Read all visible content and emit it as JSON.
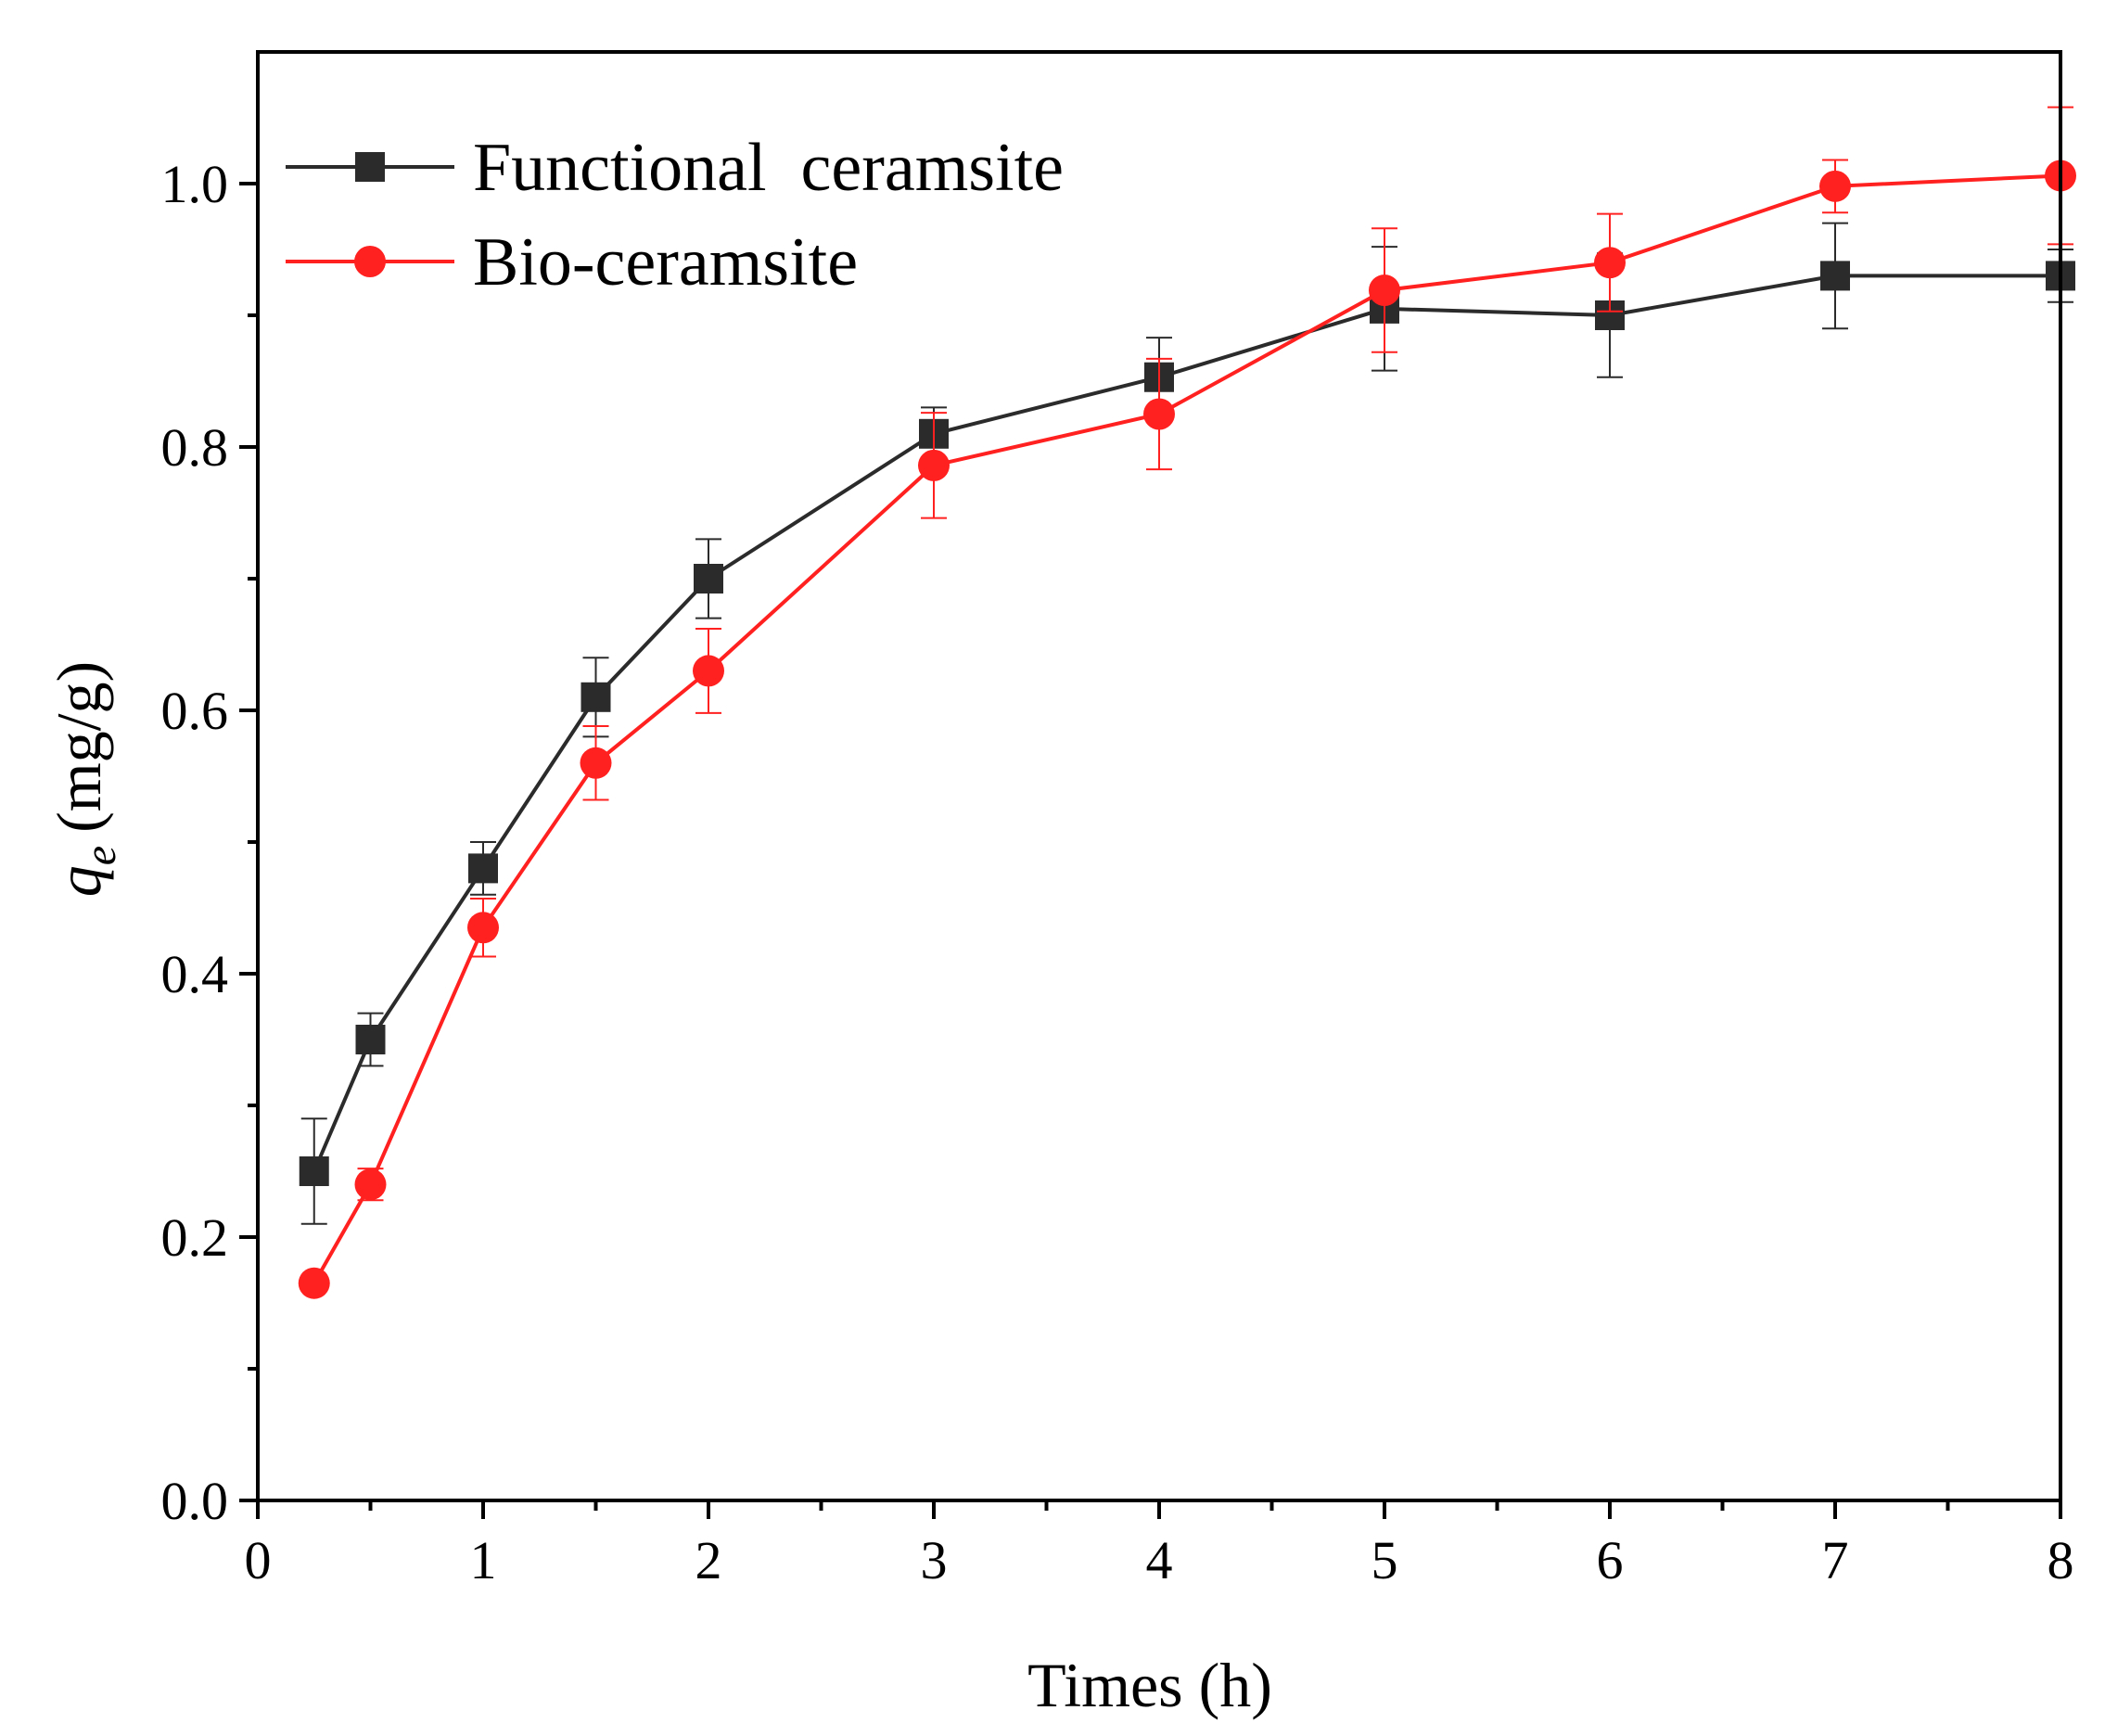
{
  "chart_data": {
    "type": "line",
    "title": "",
    "xlabel": "Times (h)",
    "ylabel": "(mg/g)",
    "ylabel_symbol": "q",
    "ylabel_subscript": "e",
    "xlim": [
      0,
      8
    ],
    "ylim": [
      0,
      1.1
    ],
    "xticks": [
      0,
      1,
      2,
      3,
      4,
      5,
      6,
      7,
      8
    ],
    "yticks": [
      0.0,
      0.2,
      0.4,
      0.6,
      0.8,
      1.0
    ],
    "xtick_labels": [
      "0",
      "1",
      "2",
      "3",
      "4",
      "5",
      "6",
      "7",
      "8"
    ],
    "ytick_labels": [
      "0.0",
      "0.2",
      "0.4",
      "0.6",
      "0.8",
      "1.0"
    ],
    "grid": false,
    "legend_position": "top-left",
    "series": [
      {
        "name": "Functional  ceramsite",
        "color": "#2b2b2b",
        "marker": "square",
        "x": [
          0.25,
          0.5,
          1,
          1.5,
          2,
          3,
          4,
          5,
          6,
          7,
          8
        ],
        "y": [
          0.25,
          0.35,
          0.48,
          0.61,
          0.7,
          0.81,
          0.853,
          0.905,
          0.9,
          0.93,
          0.93
        ],
        "err": [
          0.04,
          0.02,
          0.02,
          0.03,
          0.03,
          0.02,
          0.03,
          0.047,
          0.047,
          0.04,
          0.02
        ]
      },
      {
        "name": "Bio-ceramsite",
        "color": "#ff2020",
        "marker": "circle",
        "x": [
          0.25,
          0.5,
          1,
          1.5,
          2,
          3,
          4,
          5,
          6,
          7,
          8
        ],
        "y": [
          0.165,
          0.24,
          0.435,
          0.56,
          0.63,
          0.786,
          0.825,
          0.919,
          0.94,
          0.998,
          1.006
        ],
        "err": [
          0.005,
          0.012,
          0.022,
          0.028,
          0.032,
          0.04,
          0.042,
          0.047,
          0.037,
          0.02,
          0.052
        ]
      }
    ]
  }
}
